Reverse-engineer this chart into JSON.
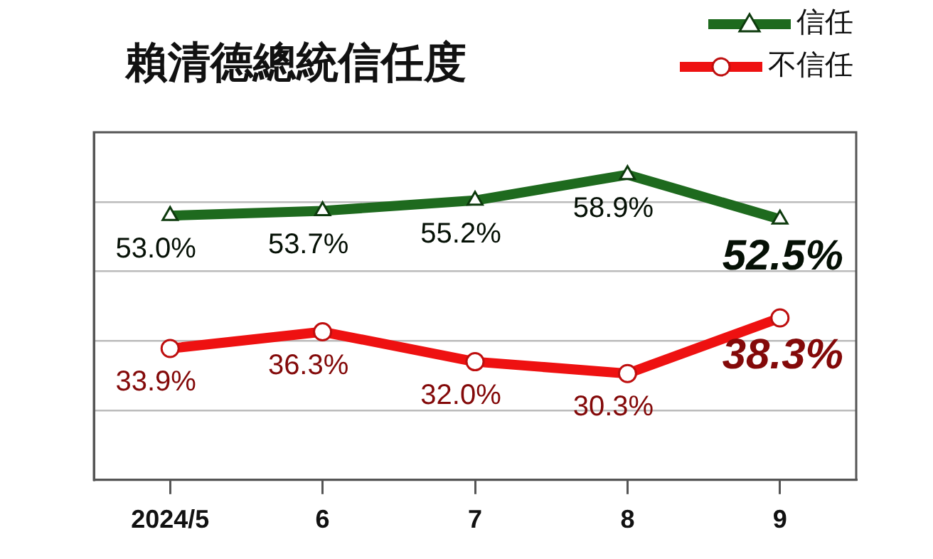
{
  "chart_data": {
    "type": "line",
    "title": "賴清德總統信任度",
    "categories": [
      "2024/5",
      "6",
      "7",
      "8",
      "9"
    ],
    "series": [
      {
        "name": "信任",
        "color": "#1e6a1e",
        "marker": "triangle",
        "values": [
          53.0,
          53.7,
          55.2,
          58.9,
          52.5
        ],
        "value_labels": [
          "53.0%",
          "53.7%",
          "55.2%",
          "58.9%",
          "52.5%"
        ]
      },
      {
        "name": "不信任",
        "color": "#ee1111",
        "marker": "circle",
        "values": [
          33.9,
          36.3,
          32.0,
          30.3,
          38.3
        ],
        "value_labels": [
          "33.9%",
          "36.3%",
          "32.0%",
          "30.3%",
          "38.3%"
        ]
      }
    ],
    "ylim": [
      15,
      65
    ],
    "yticks": [
      {
        "value": 25,
        "label": null
      },
      {
        "value": 35,
        "label": null
      },
      {
        "value": 45,
        "label": null
      },
      {
        "value": 55,
        "label": null
      }
    ],
    "tick_labels": "x",
    "grid": "y",
    "legend": "top right",
    "line_style": "solid"
  }
}
